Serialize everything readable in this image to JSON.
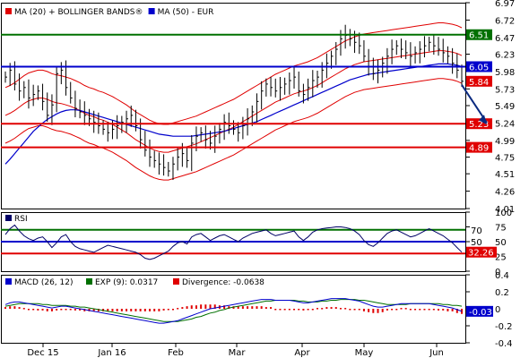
{
  "chart_data": [
    {
      "type": "line",
      "panel": "price",
      "legend": [
        {
          "label": "MA (20) + BOLLINGER BANDS®",
          "color": "#e00000"
        },
        {
          "label": "MA (50) - EUR",
          "color": "#0000cc"
        }
      ],
      "ylim": [
        4.01,
        6.97
      ],
      "yticks": [
        "6.97",
        "6.72",
        "6.47",
        "6.23",
        "5.98",
        "5.73",
        "5.49",
        "5.24",
        "4.99",
        "4.75",
        "4.51",
        "4.26",
        "4.01"
      ],
      "xticks": [
        "Dec 15",
        "Jan 16",
        "Feb",
        "Mar",
        "Apr",
        "May",
        "Jun"
      ],
      "levels": [
        {
          "value": 6.51,
          "label": "6.51",
          "color": "#007000"
        },
        {
          "value": 6.05,
          "label": "6.05",
          "color": "#0000cc"
        },
        {
          "value": 5.23,
          "label": "5.23",
          "color": "#e00000"
        },
        {
          "value": 4.89,
          "label": "4.89",
          "color": "#e00000"
        }
      ],
      "last_price": {
        "value": 5.84,
        "label": "5.84",
        "color": "#e00000"
      },
      "close": [
        5.9,
        6.0,
        5.8,
        5.7,
        5.75,
        5.6,
        5.65,
        5.7,
        5.55,
        5.35,
        5.5,
        5.95,
        6.0,
        5.75,
        5.6,
        5.45,
        5.4,
        5.35,
        5.3,
        5.25,
        5.2,
        5.15,
        5.1,
        5.15,
        5.2,
        5.25,
        5.3,
        5.35,
        5.2,
        5.0,
        4.85,
        4.75,
        4.7,
        4.65,
        4.6,
        4.55,
        4.65,
        4.75,
        4.8,
        4.7,
        4.95,
        5.05,
        5.1,
        5.0,
        4.95,
        5.05,
        5.15,
        5.25,
        5.2,
        5.15,
        5.1,
        5.2,
        5.3,
        5.4,
        5.55,
        5.7,
        5.8,
        5.75,
        5.7,
        5.75,
        5.8,
        5.85,
        5.9,
        5.7,
        5.65,
        5.75,
        5.85,
        5.9,
        6.0,
        6.1,
        6.2,
        6.3,
        6.45,
        6.5,
        6.45,
        6.4,
        6.35,
        6.2,
        6.05,
        5.95,
        6.0,
        6.1,
        6.2,
        6.3,
        6.35,
        6.3,
        6.25,
        6.2,
        6.25,
        6.3,
        6.35,
        6.4,
        6.35,
        6.3,
        6.25,
        6.2,
        6.1,
        6.0,
        5.84
      ],
      "ma20": [
        5.35,
        5.38,
        5.42,
        5.47,
        5.52,
        5.56,
        5.58,
        5.6,
        5.6,
        5.58,
        5.55,
        5.53,
        5.52,
        5.5,
        5.48,
        5.45,
        5.42,
        5.38,
        5.35,
        5.33,
        5.3,
        5.28,
        5.25,
        5.22,
        5.18,
        5.14,
        5.1,
        5.05,
        5.0,
        4.96,
        4.92,
        4.88,
        4.85,
        4.83,
        4.82,
        4.82,
        4.84,
        4.86,
        4.88,
        4.9,
        4.92,
        4.94,
        4.97,
        5.0,
        5.03,
        5.06,
        5.09,
        5.12,
        5.15,
        5.18,
        5.22,
        5.26,
        5.3,
        5.34,
        5.38,
        5.42,
        5.46,
        5.5,
        5.54,
        5.57,
        5.6,
        5.63,
        5.66,
        5.68,
        5.7,
        5.72,
        5.75,
        5.78,
        5.82,
        5.86,
        5.9,
        5.94,
        5.98,
        6.02,
        6.05,
        6.08,
        6.1,
        6.12,
        6.13,
        6.14,
        6.15,
        6.16,
        6.17,
        6.18,
        6.19,
        6.2,
        6.21,
        6.22,
        6.23,
        6.24,
        6.25,
        6.26,
        6.27,
        6.28,
        6.28,
        6.27,
        6.26,
        6.24,
        6.21
      ],
      "ma50": [
        4.65,
        4.72,
        4.8,
        4.88,
        4.96,
        5.04,
        5.12,
        5.18,
        5.24,
        5.29,
        5.33,
        5.37,
        5.4,
        5.42,
        5.43,
        5.43,
        5.42,
        5.4,
        5.38,
        5.36,
        5.34,
        5.32,
        5.3,
        5.28,
        5.26,
        5.24,
        5.22,
        5.2,
        5.18,
        5.16,
        5.14,
        5.12,
        5.1,
        5.08,
        5.07,
        5.06,
        5.05,
        5.05,
        5.05,
        5.05,
        5.05,
        5.06,
        5.07,
        5.08,
        5.09,
        5.1,
        5.11,
        5.12,
        5.14,
        5.16,
        5.18,
        5.2,
        5.22,
        5.24,
        5.26,
        5.29,
        5.32,
        5.35,
        5.38,
        5.41,
        5.44,
        5.47,
        5.5,
        5.53,
        5.56,
        5.59,
        5.62,
        5.65,
        5.68,
        5.71,
        5.74,
        5.77,
        5.8,
        5.83,
        5.86,
        5.88,
        5.9,
        5.92,
        5.94,
        5.95,
        5.96,
        5.97,
        5.98,
        5.99,
        6.0,
        6.01,
        6.02,
        6.03,
        6.04,
        6.05,
        6.06,
        6.07,
        6.08,
        6.09,
        6.09,
        6.09,
        6.08,
        6.07,
        6.05
      ],
      "band_width": 0.4
    },
    {
      "type": "line",
      "panel": "rsi",
      "legend": [
        {
          "label": "RSI",
          "color": "#000066"
        }
      ],
      "ylim": [
        0,
        100
      ],
      "yticks": [
        "100",
        "75",
        "50",
        "25",
        "0"
      ],
      "levels": [
        {
          "value": 70,
          "label": "70",
          "color": "#007000"
        },
        {
          "value": 50,
          "label": "50",
          "color": "#0000cc"
        },
        {
          "value": 30,
          "label": "30",
          "color": "#e00000"
        }
      ],
      "last_value": {
        "value": 32.26,
        "label": "32.26",
        "color": "#e00000"
      },
      "values": [
        62,
        72,
        78,
        68,
        60,
        55,
        52,
        56,
        58,
        50,
        40,
        48,
        58,
        62,
        50,
        42,
        38,
        36,
        34,
        32,
        36,
        40,
        44,
        42,
        40,
        38,
        36,
        34,
        32,
        28,
        22,
        20,
        22,
        26,
        30,
        34,
        42,
        48,
        50,
        46,
        58,
        62,
        64,
        58,
        52,
        56,
        60,
        62,
        58,
        54,
        50,
        56,
        60,
        64,
        66,
        68,
        70,
        64,
        60,
        62,
        64,
        66,
        68,
        58,
        52,
        58,
        66,
        70,
        72,
        73,
        74,
        75,
        75,
        74,
        72,
        68,
        62,
        52,
        45,
        42,
        48,
        56,
        64,
        68,
        70,
        66,
        62,
        58,
        60,
        64,
        68,
        72,
        68,
        64,
        60,
        54,
        48,
        40,
        32.26
      ]
    },
    {
      "type": "line",
      "panel": "macd",
      "legend": [
        {
          "label": "MACD (26, 12)",
          "color": "#0000cc"
        },
        {
          "label": "EXP (9): 0.0317",
          "color": "#007000"
        },
        {
          "label": "Divergence: -0.0638",
          "color": "#e00000"
        }
      ],
      "ylim": [
        -0.4,
        0.4
      ],
      "yticks": [
        "0.4",
        "0.2",
        "0",
        "-0.2",
        "-0.4"
      ],
      "last_value": {
        "value": -0.03,
        "label": "-0.03",
        "color": "#0000cc"
      },
      "macd": [
        0.05,
        0.07,
        0.08,
        0.08,
        0.07,
        0.06,
        0.05,
        0.04,
        0.03,
        0.02,
        0.01,
        0.02,
        0.03,
        0.03,
        0.02,
        0.01,
        0.0,
        -0.01,
        -0.02,
        -0.03,
        -0.04,
        -0.05,
        -0.06,
        -0.07,
        -0.08,
        -0.09,
        -0.1,
        -0.11,
        -0.12,
        -0.13,
        -0.14,
        -0.15,
        -0.16,
        -0.17,
        -0.17,
        -0.16,
        -0.15,
        -0.14,
        -0.12,
        -0.1,
        -0.08,
        -0.06,
        -0.04,
        -0.02,
        0.0,
        0.01,
        0.02,
        0.03,
        0.04,
        0.05,
        0.06,
        0.07,
        0.08,
        0.09,
        0.1,
        0.11,
        0.11,
        0.11,
        0.1,
        0.1,
        0.1,
        0.1,
        0.09,
        0.08,
        0.07,
        0.07,
        0.08,
        0.09,
        0.1,
        0.11,
        0.12,
        0.12,
        0.12,
        0.12,
        0.11,
        0.1,
        0.09,
        0.07,
        0.05,
        0.03,
        0.02,
        0.02,
        0.03,
        0.04,
        0.05,
        0.06,
        0.06,
        0.06,
        0.06,
        0.06,
        0.06,
        0.06,
        0.05,
        0.04,
        0.03,
        0.02,
        0.01,
        -0.01,
        -0.03
      ],
      "signal": [
        0.03,
        0.04,
        0.05,
        0.06,
        0.06,
        0.06,
        0.06,
        0.06,
        0.05,
        0.05,
        0.04,
        0.04,
        0.04,
        0.04,
        0.03,
        0.03,
        0.02,
        0.02,
        0.01,
        0.0,
        -0.01,
        -0.02,
        -0.03,
        -0.04,
        -0.05,
        -0.06,
        -0.07,
        -0.08,
        -0.09,
        -0.1,
        -0.11,
        -0.12,
        -0.13,
        -0.14,
        -0.15,
        -0.15,
        -0.15,
        -0.15,
        -0.14,
        -0.13,
        -0.12,
        -0.1,
        -0.09,
        -0.07,
        -0.05,
        -0.04,
        -0.02,
        -0.01,
        0.01,
        0.02,
        0.03,
        0.04,
        0.05,
        0.06,
        0.07,
        0.08,
        0.09,
        0.09,
        0.1,
        0.1,
        0.1,
        0.1,
        0.1,
        0.09,
        0.09,
        0.08,
        0.08,
        0.08,
        0.09,
        0.09,
        0.1,
        0.1,
        0.11,
        0.11,
        0.11,
        0.11,
        0.1,
        0.1,
        0.09,
        0.08,
        0.07,
        0.06,
        0.05,
        0.05,
        0.05,
        0.05,
        0.05,
        0.06,
        0.06,
        0.06,
        0.06,
        0.06,
        0.06,
        0.06,
        0.05,
        0.05,
        0.04,
        0.04,
        0.03
      ]
    }
  ],
  "colors": {
    "up": "#007000",
    "ma": "#0000cc",
    "down": "#e00000",
    "arrow": "#0a2a80"
  }
}
